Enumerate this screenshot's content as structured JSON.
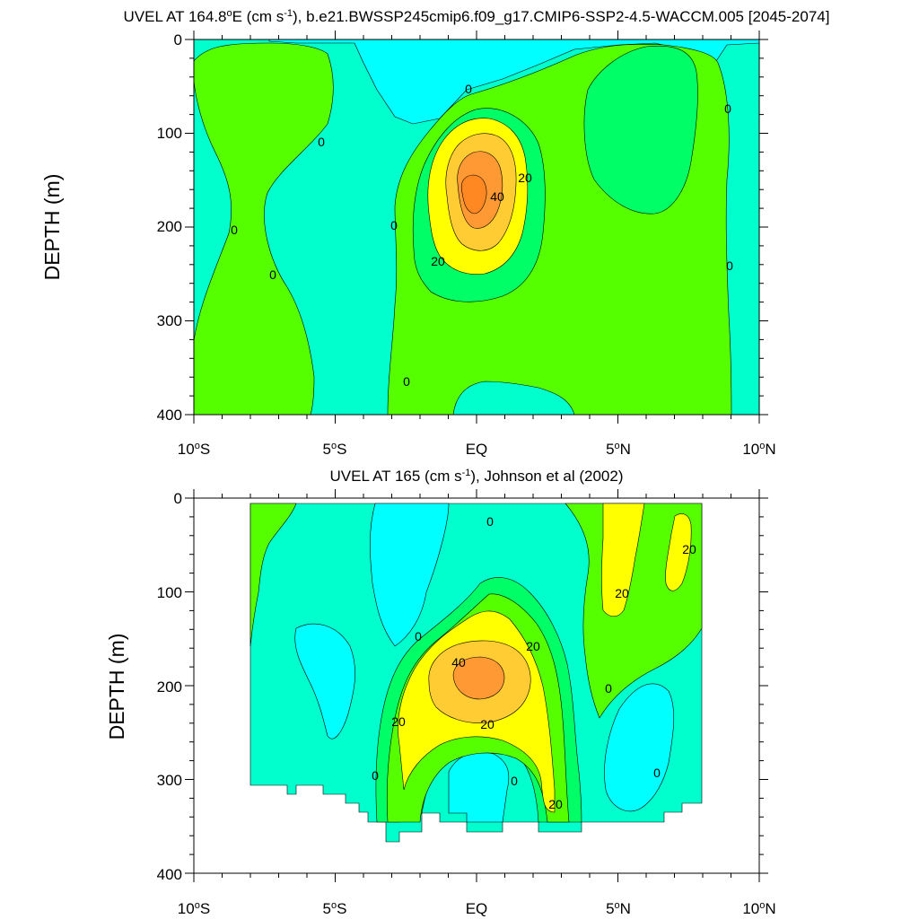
{
  "colors": {
    "cyan": "#00ffff",
    "aqua": "#00ffcc",
    "lightgreen": "#00ff66",
    "green": "#55ff00",
    "yellow": "#ffff00",
    "lightorange": "#ffcc33",
    "orange": "#ff9933",
    "darkorange": "#ff8822"
  },
  "chart_data": [
    {
      "type": "contour",
      "title": "UVEL AT 164.8°E (cm s-1), b.e21.BWSSP245cmip6.f09_g17.CMIP6-SSP2-4.5-WACCM.005 [2045-2074]",
      "ylabel": "DEPTH (m)",
      "xlim": [
        -10,
        10
      ],
      "ylim": [
        0,
        400
      ],
      "y_inverted": true,
      "xticks": [
        "10°S",
        "5°S",
        "EQ",
        "5°N",
        "10°N"
      ],
      "yticks": [
        "0",
        "100",
        "200",
        "300",
        "400"
      ],
      "contour_labels": [
        "0",
        "0",
        "0",
        "0",
        "0",
        "0",
        "0",
        "0",
        "20",
        "20",
        "40"
      ],
      "max_core": {
        "lat": 0,
        "depth": 165,
        "value": 45
      }
    },
    {
      "type": "contour",
      "title": "UVEL AT 165 (cm s-1), Johnson et al (2002)",
      "ylabel": "DEPTH (m)",
      "xlim": [
        -10,
        10
      ],
      "ylim": [
        0,
        400
      ],
      "y_inverted": true,
      "xticks": [
        "10°S",
        "5°S",
        "EQ",
        "5°N",
        "10°N"
      ],
      "yticks": [
        "0",
        "100",
        "200",
        "300",
        "400"
      ],
      "contour_labels": [
        "0",
        "0",
        "0",
        "0",
        "0",
        "0",
        "20",
        "20",
        "20",
        "20",
        "20",
        "20",
        "40"
      ],
      "max_core": {
        "lat": 0,
        "depth": 185,
        "value": 45
      }
    }
  ],
  "p1": {
    "title_a": "UVEL AT 164.8",
    "title_o": "o",
    "title_b": "E (cm s",
    "title_sup": "-1",
    "title_c": "), b.e21.BWSSP245cmip6.f09_g17.CMIP6-SSP2-4.5-WACCM.005 [2045-2074]",
    "ylabel": "DEPTH (m)",
    "labels": [
      "0",
      "0",
      "0",
      "0",
      "0",
      "0",
      "0",
      "0",
      "20",
      "20",
      "40"
    ]
  },
  "p2": {
    "title_a": "UVEL AT 165 (cm s",
    "title_sup": "-1",
    "title_b": "), Johnson et al (2002)",
    "ylabel": "DEPTH (m)",
    "labels": [
      "0",
      "0",
      "0",
      "0",
      "0",
      "0",
      "20",
      "20",
      "20",
      "20",
      "20",
      "20",
      "40"
    ]
  },
  "yticks": [
    "0",
    "100",
    "200",
    "300",
    "400"
  ],
  "xticks": [
    "10",
    "5",
    "EQ",
    "5",
    "10"
  ],
  "xtick_deg": "o",
  "xtick_hemi": [
    "S",
    "S",
    "",
    "N",
    "N"
  ]
}
